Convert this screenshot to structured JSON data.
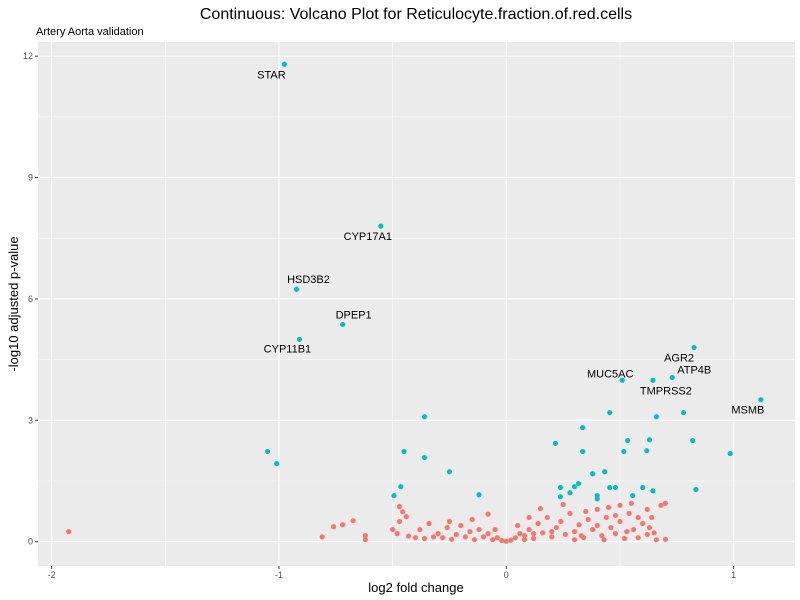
{
  "chart_data": {
    "type": "scatter",
    "title": "Continuous: Volcano Plot for Reticulocyte.fraction.of.red.cells",
    "subtitle": "Artery Aorta validation",
    "xlabel": "log2 fold change",
    "ylabel": "-log10 adjusted p-value",
    "xlim": [
      -2.06,
      1.27
    ],
    "ylim": [
      -0.6,
      12.35
    ],
    "xticks": [
      -2,
      -1,
      0,
      1
    ],
    "yticks": [
      0,
      3,
      6,
      9,
      12
    ],
    "grid": true,
    "colors": {
      "significant": "#00BFC4",
      "not_significant": "#F8766D",
      "panel": "#EBEBEB",
      "grid": "#FFFFFF"
    },
    "labeled_points": [
      {
        "gene": "STAR",
        "x": -0.976,
        "y": 11.8
      },
      {
        "gene": "CYP17A1",
        "x": -0.552,
        "y": 7.8
      },
      {
        "gene": "HSD3B2",
        "x": -0.923,
        "y": 6.24
      },
      {
        "gene": "DPEP1",
        "x": -0.72,
        "y": 5.37
      },
      {
        "gene": "CYP11B1",
        "x": -0.91,
        "y": 5.0
      },
      {
        "gene": "AGR2",
        "x": 0.826,
        "y": 4.8
      },
      {
        "gene": "ATP4B",
        "x": 0.73,
        "y": 4.06
      },
      {
        "gene": "MUC5AC",
        "x": 0.51,
        "y": 3.99
      },
      {
        "gene": "TMPRSS2",
        "x": 0.645,
        "y": 3.99
      },
      {
        "gene": "MSMB",
        "x": 1.12,
        "y": 3.51
      }
    ],
    "significant_points": [
      [
        -0.36,
        3.09
      ],
      [
        0.455,
        3.19
      ],
      [
        0.78,
        3.19
      ],
      [
        0.66,
        3.09
      ],
      [
        -1.05,
        2.23
      ],
      [
        -1.01,
        1.93
      ],
      [
        -0.45,
        2.23
      ],
      [
        -0.36,
        2.08
      ],
      [
        -0.25,
        1.73
      ],
      [
        0.216,
        2.43
      ],
      [
        0.336,
        2.82
      ],
      [
        0.336,
        2.23
      ],
      [
        0.534,
        2.5
      ],
      [
        0.63,
        2.52
      ],
      [
        0.517,
        2.23
      ],
      [
        0.618,
        2.25
      ],
      [
        0.82,
        2.5
      ],
      [
        0.985,
        2.18
      ],
      [
        0.238,
        1.34
      ],
      [
        0.238,
        1.11
      ],
      [
        0.28,
        1.21
      ],
      [
        0.3,
        1.36
      ],
      [
        0.318,
        1.44
      ],
      [
        0.38,
        1.68
      ],
      [
        0.433,
        1.73
      ],
      [
        0.4,
        1.06
      ],
      [
        0.4,
        1.14
      ],
      [
        0.455,
        1.34
      ],
      [
        0.48,
        1.34
      ],
      [
        0.556,
        1.14
      ],
      [
        0.6,
        1.34
      ],
      [
        0.645,
        1.26
      ],
      [
        0.834,
        1.29
      ],
      [
        -0.464,
        1.36
      ],
      [
        -0.494,
        1.14
      ],
      [
        -0.12,
        1.16
      ]
    ],
    "nonsignificant_points": [
      [
        -1.925,
        0.25
      ],
      [
        -0.81,
        0.12
      ],
      [
        -0.76,
        0.37
      ],
      [
        -0.72,
        0.42
      ],
      [
        -0.674,
        0.52
      ],
      [
        -0.62,
        0.05
      ],
      [
        -0.62,
        0.15
      ],
      [
        -0.47,
        0.5
      ],
      [
        -0.47,
        0.87
      ],
      [
        -0.456,
        0.74
      ],
      [
        -0.44,
        0.62
      ],
      [
        -0.5,
        0.3
      ],
      [
        -0.48,
        0.2
      ],
      [
        -0.43,
        0.14
      ],
      [
        -0.4,
        0.1
      ],
      [
        -0.38,
        0.3
      ],
      [
        -0.36,
        0.08
      ],
      [
        -0.34,
        0.45
      ],
      [
        -0.32,
        0.12
      ],
      [
        -0.3,
        0.2
      ],
      [
        -0.28,
        0.1
      ],
      [
        -0.26,
        0.35
      ],
      [
        -0.24,
        0.06
      ],
      [
        -0.22,
        0.18
      ],
      [
        -0.2,
        0.4
      ],
      [
        -0.18,
        0.12
      ],
      [
        -0.16,
        0.25
      ],
      [
        -0.14,
        0.05
      ],
      [
        -0.12,
        0.3
      ],
      [
        -0.1,
        0.12
      ],
      [
        -0.08,
        0.2
      ],
      [
        -0.06,
        0.05
      ],
      [
        -0.04,
        0.1
      ],
      [
        -0.02,
        0.03
      ],
      [
        -0.15,
        0.55
      ],
      [
        -0.08,
        0.68
      ],
      [
        0.0,
        0.01
      ],
      [
        0.02,
        0.04
      ],
      [
        0.04,
        0.1
      ],
      [
        0.06,
        0.2
      ],
      [
        0.08,
        0.15
      ],
      [
        0.1,
        0.3
      ],
      [
        0.12,
        0.08
      ],
      [
        0.14,
        0.45
      ],
      [
        0.16,
        0.22
      ],
      [
        0.18,
        0.6
      ],
      [
        0.2,
        0.12
      ],
      [
        0.22,
        0.35
      ],
      [
        0.24,
        0.5
      ],
      [
        0.26,
        0.18
      ],
      [
        0.28,
        0.7
      ],
      [
        0.3,
        0.25
      ],
      [
        0.32,
        0.42
      ],
      [
        0.34,
        0.1
      ],
      [
        0.36,
        0.55
      ],
      [
        0.38,
        0.3
      ],
      [
        0.4,
        0.8
      ],
      [
        0.42,
        0.15
      ],
      [
        0.44,
        0.6
      ],
      [
        0.46,
        0.35
      ],
      [
        0.48,
        0.2
      ],
      [
        0.5,
        0.5
      ],
      [
        0.52,
        0.08
      ],
      [
        0.54,
        0.7
      ],
      [
        0.56,
        0.3
      ],
      [
        0.58,
        0.1
      ],
      [
        0.6,
        0.45
      ],
      [
        0.62,
        0.18
      ],
      [
        0.64,
        0.6
      ],
      [
        0.66,
        0.05
      ],
      [
        0.68,
        0.9
      ],
      [
        0.7,
        0.95
      ],
      [
        0.7,
        0.06
      ],
      [
        0.65,
        0.22
      ],
      [
        0.55,
        0.95
      ],
      [
        0.5,
        0.9
      ],
      [
        0.45,
        0.85
      ],
      [
        0.35,
        0.75
      ],
      [
        0.25,
        0.92
      ],
      [
        0.15,
        0.82
      ],
      [
        0.1,
        0.6
      ],
      [
        0.05,
        0.4
      ],
      [
        0.2,
        0.25
      ],
      [
        0.3,
        0.05
      ],
      [
        0.4,
        0.4
      ],
      [
        0.48,
        0.65
      ],
      [
        0.58,
        0.6
      ],
      [
        0.62,
        0.8
      ],
      [
        0.12,
        0.2
      ],
      [
        0.08,
        0.05
      ],
      [
        -0.05,
        0.3
      ],
      [
        -0.25,
        0.5
      ],
      [
        0.33,
        0.15
      ],
      [
        0.43,
        0.05
      ],
      [
        0.53,
        0.25
      ],
      [
        0.63,
        0.35
      ]
    ]
  }
}
